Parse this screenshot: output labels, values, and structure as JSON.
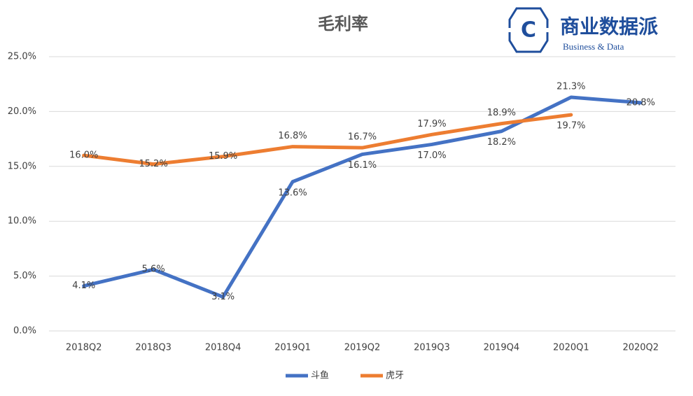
{
  "logo": {
    "mark": "C",
    "name": "商业数据派",
    "tagline": "Business & Data"
  },
  "chart_data": {
    "type": "line",
    "title": "毛利率",
    "categories": [
      "2018Q2",
      "2018Q3",
      "2018Q4",
      "2019Q1",
      "2019Q2",
      "2019Q3",
      "2019Q4",
      "2020Q1",
      "2020Q2"
    ],
    "series": [
      {
        "name": "斗鱼",
        "color": "#4472c4",
        "values": [
          4.1,
          5.6,
          3.1,
          13.6,
          16.1,
          17.0,
          18.2,
          21.3,
          20.8
        ],
        "value_labels": [
          "4.1%",
          "5.6%",
          "3.1%",
          "13.6%",
          "16.1%",
          "17.0%",
          "18.2%",
          "21.3%",
          "20.8%"
        ]
      },
      {
        "name": "虎牙",
        "color": "#ed7d31",
        "values": [
          16.0,
          15.2,
          15.9,
          16.8,
          16.7,
          17.9,
          18.9,
          19.7,
          null
        ],
        "value_labels": [
          "16.0%",
          "15.2%",
          "15.9%",
          "16.8%",
          "16.7%",
          "17.9%",
          "18.9%",
          "19.7%",
          null
        ]
      }
    ],
    "ylim": [
      0,
      25
    ],
    "yticks": [
      {
        "value": 0,
        "label": "0.0%"
      },
      {
        "value": 5,
        "label": "5.0%"
      },
      {
        "value": 10,
        "label": "10.0%"
      },
      {
        "value": 15,
        "label": "15.0%"
      },
      {
        "value": 20,
        "label": "20.0%"
      },
      {
        "value": 25,
        "label": "25.0%"
      }
    ],
    "grid": true,
    "legend": "bottom"
  }
}
